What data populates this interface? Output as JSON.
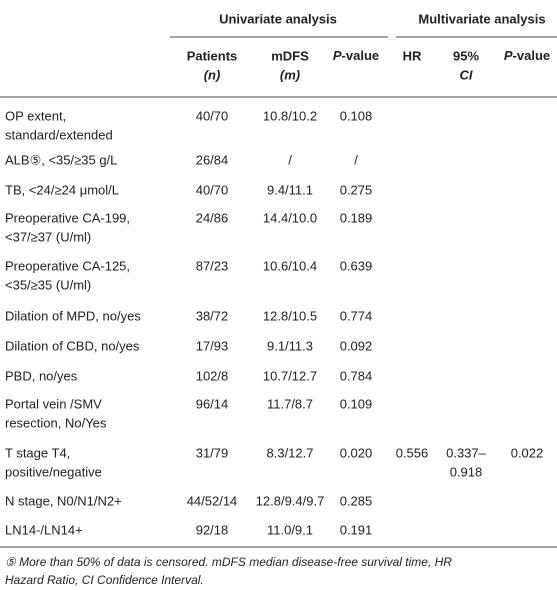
{
  "table": {
    "group_headers": [
      "Univariate analysis",
      "Multivariate analysis"
    ],
    "column_headers": [
      [
        "Patients",
        "(n)"
      ],
      [
        "mDFS",
        "(m)"
      ],
      {
        "p": "P",
        "rest": "-value"
      },
      [
        "HR"
      ],
      [
        "95%",
        "CI"
      ],
      {
        "p": "P",
        "rest": "-value"
      }
    ],
    "rows": [
      {
        "label": [
          "OP extent,",
          "standard/extended"
        ],
        "univariate": [
          "40/70",
          "10.8/10.2",
          "0.108"
        ]
      },
      {
        "label": [
          "ALB⑤, <35/≥35 g/L"
        ],
        "univariate": [
          "26/84",
          "/",
          "/"
        ]
      },
      {
        "label": [
          "TB, <24/≥24 μmol/L"
        ],
        "univariate": [
          "40/70",
          "9.4/11.1",
          "0.275"
        ]
      },
      {
        "label": [
          "Preoperative CA-199,",
          "<37/≥37 (U/ml)"
        ],
        "univariate": [
          "24/86",
          "14.4/10.0",
          "0.189"
        ]
      },
      {
        "label": [
          "Preoperative CA-125,",
          "<35/≥35 (U/ml)"
        ],
        "univariate": [
          "87/23",
          "10.6/10.4",
          "0.639"
        ]
      },
      {
        "label": [
          "Dilation of MPD, no/yes"
        ],
        "univariate": [
          "38/72",
          "12.8/10.5",
          "0.774"
        ]
      },
      {
        "label": [
          "Dilation of CBD, no/yes"
        ],
        "univariate": [
          "17/93",
          "9.1/11.3",
          "0.092"
        ]
      },
      {
        "label": [
          "PBD, no/yes"
        ],
        "univariate": [
          "102/8",
          "10.7/12.7",
          "0.784"
        ]
      },
      {
        "label": [
          "Portal vein /SMV",
          "resection, No/Yes"
        ],
        "univariate": [
          "96/14",
          "11.7/8.7",
          "0.109"
        ]
      },
      {
        "label": [
          "T stage T4,",
          "positive/negative"
        ],
        "univariate": [
          "31/79",
          "8.3/12.7",
          "0.020"
        ],
        "multivariate": [
          [
            "0.556"
          ],
          [
            "0.337–",
            "0.918"
          ],
          [
            "0.022"
          ]
        ]
      },
      {
        "label": [
          "N stage, N0/N1/N2+"
        ],
        "univariate": [
          "44/52/14",
          "12.8/9.4/9.7",
          "0.285"
        ]
      },
      {
        "label": [
          "LN14-/LN14+"
        ],
        "univariate": [
          "92/18",
          "11.0/9.1",
          "0.191"
        ]
      }
    ],
    "footnote": [
      "⑤ More than 50% of data is censored. mDFS median disease-free survival time, HR",
      "Hazard Ratio, CI Confidence Interval."
    ]
  }
}
